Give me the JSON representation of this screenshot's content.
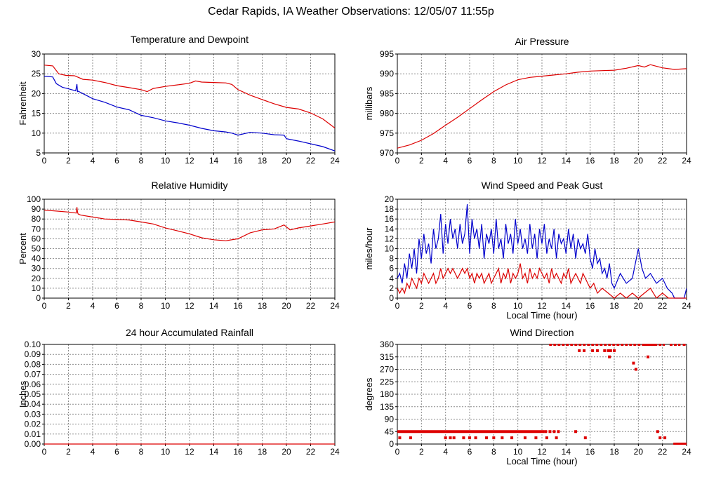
{
  "page": {
    "title": "Cedar Rapids, IA Weather Observations: 12/05/07 11:55p"
  },
  "colors": {
    "red": "#dd0000",
    "blue": "#0000cc",
    "grid": "#8c8c8c"
  },
  "chart_data": [
    {
      "id": "temp",
      "type": "line",
      "title": "Temperature and Dewpoint",
      "xlabel": "",
      "ylabel": "Fahrenheit",
      "xlim": [
        0,
        24
      ],
      "ylim": [
        5,
        30
      ],
      "xticks": [
        0,
        2,
        4,
        6,
        8,
        10,
        12,
        14,
        16,
        18,
        20,
        22,
        24
      ],
      "yticks": [
        5,
        10,
        15,
        20,
        25,
        30
      ],
      "grid": true,
      "series": [
        {
          "color": "#dd0000",
          "x": [
            0,
            0.7,
            1.2,
            1.8,
            2.5,
            3.2,
            4,
            5,
            6,
            7,
            8,
            8.5,
            9,
            10,
            11,
            12,
            12.5,
            13,
            14,
            15,
            15.5,
            16,
            17,
            18,
            19,
            20,
            21,
            22,
            23,
            24
          ],
          "y": [
            27.2,
            27,
            25,
            24.6,
            24.5,
            23.6,
            23.4,
            22.8,
            22,
            21.5,
            21,
            20.5,
            21.3,
            21.8,
            22.2,
            22.6,
            23.2,
            22.9,
            22.8,
            22.7,
            22.3,
            21,
            19.6,
            18.5,
            17.4,
            16.5,
            16.1,
            15.1,
            13.6,
            11.3
          ]
        },
        {
          "color": "#0000cc",
          "x": [
            0,
            0.7,
            1.0,
            1.5,
            2.0,
            2.6,
            2.7,
            2.75,
            2.8,
            3.5,
            4,
            5,
            6,
            7,
            8,
            9,
            10,
            11,
            12,
            13,
            14,
            15,
            15.5,
            16,
            17,
            18,
            19,
            19.8,
            20,
            21,
            22,
            23,
            24
          ],
          "y": [
            24.4,
            24.2,
            22.5,
            21.6,
            21.2,
            20.7,
            22.4,
            20.5,
            20.6,
            19.5,
            18.7,
            17.8,
            16.6,
            15.9,
            14.5,
            13.9,
            13.1,
            12.6,
            12.0,
            11.2,
            10.6,
            10.3,
            10.0,
            9.5,
            10.2,
            10.0,
            9.6,
            9.5,
            8.6,
            8.0,
            7.3,
            6.6,
            5.5
          ]
        }
      ]
    },
    {
      "id": "pressure",
      "type": "line",
      "title": "Air Pressure",
      "xlabel": "",
      "ylabel": "millibars",
      "xlim": [
        0,
        24
      ],
      "ylim": [
        970,
        995
      ],
      "xticks": [
        0,
        2,
        4,
        6,
        8,
        10,
        12,
        14,
        16,
        18,
        20,
        22,
        24
      ],
      "yticks": [
        970,
        975,
        980,
        985,
        990,
        995
      ],
      "grid": true,
      "series": [
        {
          "color": "#dd0000",
          "x": [
            0,
            1,
            2,
            3,
            4,
            5,
            6,
            7,
            8,
            9,
            10,
            11,
            12,
            13,
            14,
            15,
            16,
            17,
            18,
            19,
            20,
            20.5,
            21,
            22,
            23,
            24
          ],
          "y": [
            971.2,
            972,
            973.2,
            974.9,
            977,
            979,
            981.2,
            983.4,
            985.5,
            987.2,
            988.5,
            989.1,
            989.4,
            989.7,
            990,
            990.4,
            990.7,
            990.8,
            990.9,
            991.4,
            992.1,
            991.7,
            992.3,
            991.5,
            991.1,
            991.3
          ]
        }
      ]
    },
    {
      "id": "humidity",
      "type": "line",
      "title": "Relative Humidity",
      "xlabel": "",
      "ylabel": "Percent",
      "xlim": [
        0,
        24
      ],
      "ylim": [
        0,
        100
      ],
      "xticks": [
        0,
        2,
        4,
        6,
        8,
        10,
        12,
        14,
        16,
        18,
        20,
        22,
        24
      ],
      "yticks": [
        0,
        10,
        20,
        30,
        40,
        50,
        60,
        70,
        80,
        90,
        100
      ],
      "grid": true,
      "series": [
        {
          "color": "#dd0000",
          "x": [
            0,
            1,
            2,
            2.65,
            2.7,
            2.75,
            2.8,
            3,
            4,
            5,
            6,
            7,
            8,
            9,
            10,
            11,
            12,
            13,
            14,
            15,
            16,
            17,
            18,
            19,
            19.8,
            20.3,
            21,
            22,
            23,
            24
          ],
          "y": [
            89,
            88,
            87,
            86,
            92,
            87,
            85,
            84,
            82,
            80,
            79.5,
            79,
            77,
            75,
            71,
            68,
            65,
            61,
            59,
            58,
            60,
            66,
            69,
            70,
            74,
            69,
            71,
            73,
            75,
            77
          ]
        }
      ]
    },
    {
      "id": "wind",
      "type": "line",
      "title": "Wind Speed and Peak Gust",
      "xlabel": "Local Time (hour)",
      "ylabel": "miles/hour",
      "xlim": [
        0,
        24
      ],
      "ylim": [
        0,
        20
      ],
      "xticks": [
        0,
        2,
        4,
        6,
        8,
        10,
        12,
        14,
        16,
        18,
        20,
        22,
        24
      ],
      "yticks": [
        0,
        2,
        4,
        6,
        8,
        10,
        12,
        14,
        16,
        18,
        20
      ],
      "grid": true,
      "series": [
        {
          "color": "#0000cc",
          "x": [
            0,
            0.2,
            0.4,
            0.6,
            0.8,
            1.0,
            1.2,
            1.4,
            1.6,
            1.8,
            2.0,
            2.2,
            2.4,
            2.6,
            2.8,
            3.0,
            3.2,
            3.4,
            3.6,
            3.8,
            4.0,
            4.2,
            4.4,
            4.6,
            4.8,
            5.0,
            5.2,
            5.4,
            5.6,
            5.8,
            6.0,
            6.2,
            6.4,
            6.6,
            6.8,
            7.0,
            7.2,
            7.4,
            7.6,
            7.8,
            8.0,
            8.2,
            8.4,
            8.6,
            8.8,
            9.0,
            9.2,
            9.4,
            9.6,
            9.8,
            10.0,
            10.2,
            10.4,
            10.6,
            10.8,
            11.0,
            11.2,
            11.4,
            11.6,
            11.8,
            12.0,
            12.2,
            12.4,
            12.6,
            12.8,
            13.0,
            13.2,
            13.4,
            13.6,
            13.8,
            14.0,
            14.2,
            14.4,
            14.6,
            14.8,
            15.0,
            15.2,
            15.4,
            15.6,
            15.8,
            16.0,
            16.2,
            16.4,
            16.6,
            16.8,
            17.0,
            17.2,
            17.4,
            17.6,
            17.8,
            18.0,
            18.5,
            19.0,
            19.5,
            20.0,
            20.3,
            20.6,
            21.0,
            21.5,
            22.0,
            22.4,
            22.8,
            23.0,
            23.4,
            23.8,
            24.0
          ],
          "y": [
            4,
            5,
            3,
            7,
            4,
            9,
            6,
            10,
            5,
            12,
            8,
            13,
            9,
            11,
            7,
            14,
            10,
            12,
            17,
            9,
            15,
            11,
            16,
            12,
            14,
            10,
            15,
            11,
            13,
            19,
            9,
            16,
            12,
            14,
            10,
            15,
            8,
            13,
            11,
            14,
            9,
            16,
            10,
            12,
            8,
            15,
            11,
            13,
            9,
            16,
            11,
            14,
            10,
            12,
            9,
            15,
            10,
            13,
            8,
            14,
            11,
            15,
            9,
            12,
            10,
            14,
            8,
            13,
            11,
            12,
            9,
            14,
            10,
            13,
            8,
            12,
            10,
            11,
            9,
            13,
            8,
            6,
            10,
            7,
            8,
            5,
            6,
            4,
            7,
            3,
            2,
            5,
            3,
            4,
            10,
            6,
            4,
            5,
            3,
            4,
            2,
            1,
            0,
            0,
            0,
            2
          ]
        },
        {
          "color": "#dd0000",
          "x": [
            0,
            0.2,
            0.4,
            0.6,
            0.8,
            1.0,
            1.2,
            1.4,
            1.6,
            1.8,
            2.0,
            2.2,
            2.4,
            2.6,
            2.8,
            3.0,
            3.2,
            3.4,
            3.6,
            3.8,
            4.0,
            4.2,
            4.4,
            4.6,
            4.8,
            5.0,
            5.2,
            5.4,
            5.6,
            5.8,
            6.0,
            6.2,
            6.4,
            6.6,
            6.8,
            7.0,
            7.2,
            7.4,
            7.6,
            7.8,
            8.0,
            8.2,
            8.4,
            8.6,
            8.8,
            9.0,
            9.2,
            9.4,
            9.6,
            9.8,
            10.0,
            10.2,
            10.4,
            10.6,
            10.8,
            11.0,
            11.2,
            11.4,
            11.6,
            11.8,
            12.0,
            12.2,
            12.4,
            12.6,
            12.8,
            13.0,
            13.2,
            13.4,
            13.6,
            13.8,
            14.0,
            14.2,
            14.4,
            14.6,
            14.8,
            15.0,
            15.2,
            15.4,
            15.6,
            15.8,
            16.0,
            16.3,
            16.6,
            17.0,
            17.5,
            18.0,
            18.5,
            19.0,
            19.5,
            20.0,
            20.5,
            21.0,
            21.5,
            22.0,
            22.5,
            23.0,
            23.5,
            24.0
          ],
          "y": [
            2,
            1,
            2,
            1,
            3,
            2,
            4,
            3,
            2,
            4,
            3,
            5,
            4,
            3,
            4,
            5,
            3,
            4,
            6,
            4,
            5,
            6,
            5,
            6,
            5,
            4,
            5,
            6,
            5,
            6,
            4,
            5,
            3,
            5,
            4,
            5,
            3,
            4,
            5,
            3,
            4,
            5,
            6,
            3,
            5,
            4,
            6,
            3,
            5,
            4,
            5,
            7,
            4,
            5,
            3,
            6,
            4,
            5,
            4,
            6,
            5,
            4,
            5,
            3,
            6,
            4,
            5,
            4,
            3,
            5,
            4,
            6,
            3,
            4,
            5,
            4,
            3,
            5,
            4,
            3,
            2,
            3,
            1,
            2,
            1,
            0,
            1,
            0,
            1,
            0,
            1,
            2,
            0,
            1,
            0,
            0,
            0,
            0
          ]
        }
      ]
    },
    {
      "id": "rain",
      "type": "line",
      "title": "24 hour Accumulated Rainfall",
      "xlabel": "",
      "ylabel": "Inches",
      "xlim": [
        0,
        24
      ],
      "ylim": [
        0,
        0.1
      ],
      "xticks": [
        0,
        2,
        4,
        6,
        8,
        10,
        12,
        14,
        16,
        18,
        20,
        22,
        24
      ],
      "yticks": [
        "0.00",
        "0.01",
        "0.02",
        "0.03",
        "0.04",
        "0.05",
        "0.06",
        "0.07",
        "0.08",
        "0.09",
        "0.10"
      ],
      "grid": true,
      "series": [
        {
          "color": "#dd0000",
          "x": [
            0,
            24
          ],
          "y": [
            0,
            0
          ]
        }
      ]
    },
    {
      "id": "direction",
      "type": "scatter",
      "title": "Wind Direction",
      "xlabel": "Local Time (hour)",
      "ylabel": "degrees",
      "xlim": [
        0,
        24
      ],
      "ylim": [
        0,
        360
      ],
      "xticks": [
        0,
        2,
        4,
        6,
        8,
        10,
        12,
        14,
        16,
        18,
        20,
        22,
        24
      ],
      "yticks": [
        0,
        45,
        90,
        135,
        180,
        225,
        270,
        315,
        360
      ],
      "grid": true,
      "series": [
        {
          "color": "#dd0000",
          "segments": [
            {
              "y": 45,
              "from": 0,
              "to": 12.2
            },
            {
              "y": 45,
              "from": 12.2,
              "to": 13.6,
              "dotted": true
            },
            {
              "y": 360,
              "from": 12.6,
              "to": 22.2,
              "dotted": true
            },
            {
              "y": 360,
              "from": 20.5,
              "to": 21.5
            },
            {
              "y": 360,
              "from": 22.6,
              "to": 23.5,
              "dotted": true
            },
            {
              "y": 0,
              "from": 22.9,
              "to": 24
            }
          ],
          "points": {
            "x": [
              0.2,
              1.1,
              4.0,
              4.4,
              4.7,
              5.5,
              6.0,
              6.5,
              7.4,
              8.0,
              8.7,
              9.5,
              10.6,
              11.5,
              12.4,
              13.2,
              14.8,
              15.1,
              15.5,
              16.2,
              16.6,
              17.2,
              17.5,
              17.7,
              18.0,
              17.6,
              19.6,
              19.8,
              20.8,
              21.6,
              21.8,
              22.2,
              23.8,
              15.6
            ],
            "y": [
              22.5,
              22.5,
              22.5,
              22.5,
              22.5,
              22.5,
              22.5,
              22.5,
              22.5,
              22.5,
              22.5,
              22.5,
              22.5,
              22.5,
              22.5,
              22.5,
              45,
              337.5,
              337.5,
              337.5,
              337.5,
              337.5,
              337.5,
              337.5,
              337.5,
              315,
              292.5,
              270,
              315,
              45,
              22.5,
              22.5,
              360,
              22.5
            ]
          }
        }
      ]
    }
  ]
}
